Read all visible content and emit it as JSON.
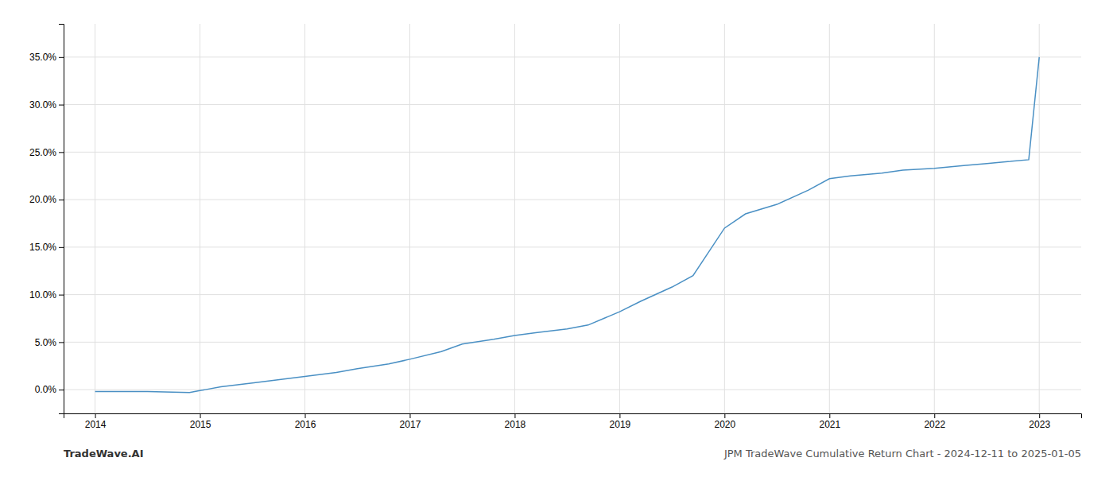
{
  "chart_data": {
    "type": "line",
    "title": "JPM TradeWave Cumulative Return Chart - 2024-12-11 to 2025-01-05",
    "annotations": [
      "TradeWave.AI"
    ],
    "color": "#4a90c4",
    "grid": true,
    "x": [
      2014.0,
      2014.08,
      2014.5,
      2014.9,
      2015.0,
      2015.05,
      2015.2,
      2015.5,
      2016.0,
      2016.3,
      2016.5,
      2016.8,
      2017.0,
      2017.3,
      2017.5,
      2017.8,
      2018.0,
      2018.2,
      2018.5,
      2018.7,
      2019.0,
      2019.2,
      2019.5,
      2019.7,
      2020.0,
      2020.2,
      2020.5,
      2020.8,
      2021.0,
      2021.2,
      2021.5,
      2021.7,
      2022.0,
      2022.3,
      2022.5,
      2022.7,
      2022.9,
      2023.0
    ],
    "values": [
      -0.002,
      -0.002,
      -0.002,
      -0.003,
      -0.001,
      0.0,
      0.003,
      0.007,
      0.014,
      0.018,
      0.022,
      0.027,
      0.032,
      0.04,
      0.048,
      0.053,
      0.057,
      0.06,
      0.064,
      0.068,
      0.082,
      0.093,
      0.108,
      0.12,
      0.17,
      0.185,
      0.195,
      0.21,
      0.222,
      0.225,
      0.228,
      0.231,
      0.233,
      0.236,
      0.238,
      0.24,
      0.242,
      0.35
    ],
    "xlim": [
      2013.7,
      2023.4
    ],
    "ylim": [
      -0.025,
      0.385
    ],
    "xticks": [
      2014,
      2015,
      2016,
      2017,
      2018,
      2019,
      2020,
      2021,
      2022,
      2023
    ],
    "yticks": [
      {
        "value": 0.0,
        "label": "0.0%"
      },
      {
        "value": 0.05,
        "label": "5.0%"
      },
      {
        "value": 0.1,
        "label": "10.0%"
      },
      {
        "value": 0.15,
        "label": "15.0%"
      },
      {
        "value": 0.2,
        "label": "20.0%"
      },
      {
        "value": 0.25,
        "label": "25.0%"
      },
      {
        "value": 0.3,
        "label": "30.0%"
      },
      {
        "value": 0.35,
        "label": "35.0%"
      }
    ]
  }
}
